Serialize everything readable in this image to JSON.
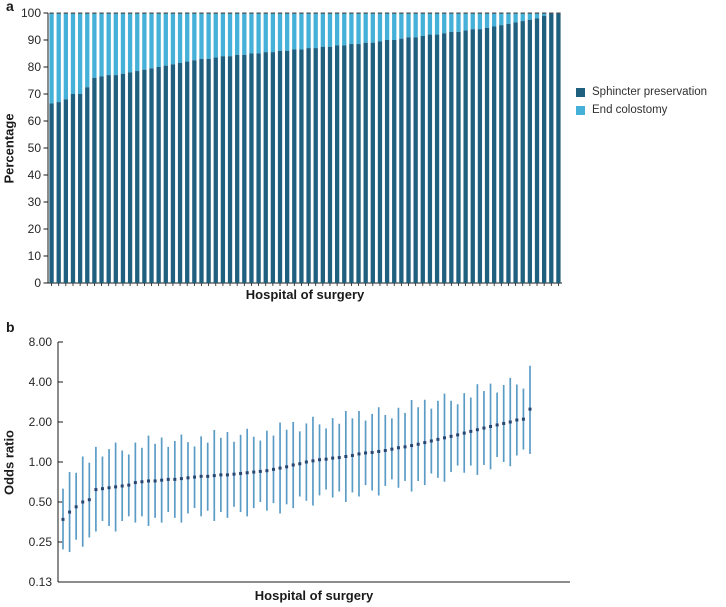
{
  "panels": {
    "a": {
      "label": "a",
      "ylabel": "Percentage",
      "xlabel": "Hospital of surgery",
      "legend": [
        {
          "label": "Sphincter preservation",
          "color": "#20607f"
        },
        {
          "label": "End colostomy",
          "color": "#45b1d8"
        }
      ]
    },
    "b": {
      "label": "b",
      "ylabel": "Odds ratio",
      "xlabel": "Hospital of surgery"
    }
  },
  "colors": {
    "sphincter_preservation": "#20607f",
    "end_colostomy": "#45b1d8",
    "bar_top_cap": "#4d4d4d",
    "errorbar": "#5b9cc6",
    "marker": "#2a4570",
    "axis": "#1a1a1a",
    "tick_text": "#262626"
  },
  "chart_data": [
    {
      "type": "bar",
      "panel": "a",
      "stacked": true,
      "title": "",
      "xlabel": "Hospital of surgery",
      "ylabel": "Percentage",
      "ylim": [
        0,
        100
      ],
      "yticks": [
        0,
        10,
        20,
        30,
        40,
        50,
        60,
        70,
        80,
        90,
        100
      ],
      "grid": false,
      "legend_position": "right",
      "x_note": "72 hospitals, individual hospitals unlabeled, sorted ascending by sphincter preservation rate",
      "series": [
        {
          "name": "Sphincter preservation",
          "color": "#20607f",
          "values": [
            66.5,
            67,
            68,
            70,
            70,
            72.5,
            76,
            76.5,
            77,
            77,
            77.5,
            78,
            78.5,
            79,
            79.5,
            80,
            80.5,
            81,
            81.5,
            82,
            82.5,
            83,
            83,
            83.5,
            84,
            84,
            84.5,
            84.5,
            85,
            85,
            85.5,
            85.5,
            86,
            86,
            86.5,
            86.5,
            87,
            87,
            87.5,
            87.5,
            88,
            88,
            88.5,
            88.5,
            89,
            89,
            89.5,
            90,
            90,
            90.5,
            91,
            91,
            91.5,
            92,
            92,
            92.5,
            93,
            93,
            93.5,
            94,
            94,
            94.5,
            95,
            95.5,
            96,
            96.5,
            97,
            97.5,
            98,
            99,
            100,
            100
          ]
        },
        {
          "name": "End colostomy",
          "color": "#45b1d8",
          "values": [
            33.5,
            33,
            32,
            30,
            30,
            27.5,
            24,
            23.5,
            23,
            23,
            22.5,
            22,
            21.5,
            21,
            20.5,
            20,
            19.5,
            19,
            18.5,
            18,
            17.5,
            17,
            17,
            16.5,
            16,
            16,
            15.5,
            15.5,
            15,
            15,
            14.5,
            14.5,
            14,
            14,
            13.5,
            13.5,
            13,
            13,
            12.5,
            12.5,
            12,
            12,
            11.5,
            11.5,
            11,
            11,
            10.5,
            10,
            10,
            9.5,
            9,
            9,
            8.5,
            8,
            8,
            7.5,
            7,
            7,
            6.5,
            6,
            6,
            5.5,
            5,
            4.5,
            4,
            3.5,
            3,
            2.5,
            2,
            1,
            0,
            0
          ]
        }
      ]
    },
    {
      "type": "scatter",
      "panel": "b",
      "subtype": "errorbar",
      "title": "",
      "xlabel": "Hospital of surgery",
      "ylabel": "Odds ratio",
      "yscale": "log2",
      "ylim": [
        0.13,
        8
      ],
      "ytick_values": [
        8,
        4,
        2,
        1,
        0.5,
        0.25,
        0.125
      ],
      "ytick_labels": [
        "8.00",
        "4.00",
        "2.00",
        "1.00",
        "0.50",
        "0.25",
        "0.13"
      ],
      "grid": false,
      "x_note": "72 hospitals, individual hospitals unlabeled, sorted ascending by odds ratio",
      "points": {
        "or": [
          0.37,
          0.42,
          0.46,
          0.5,
          0.52,
          0.62,
          0.63,
          0.64,
          0.65,
          0.66,
          0.67,
          0.7,
          0.71,
          0.72,
          0.72,
          0.73,
          0.74,
          0.74,
          0.75,
          0.76,
          0.77,
          0.78,
          0.78,
          0.79,
          0.8,
          0.8,
          0.81,
          0.82,
          0.83,
          0.84,
          0.85,
          0.86,
          0.88,
          0.9,
          0.92,
          0.95,
          0.97,
          1.0,
          1.02,
          1.04,
          1.05,
          1.07,
          1.08,
          1.1,
          1.12,
          1.15,
          1.17,
          1.18,
          1.2,
          1.22,
          1.25,
          1.28,
          1.3,
          1.33,
          1.36,
          1.4,
          1.44,
          1.48,
          1.52,
          1.56,
          1.6,
          1.65,
          1.7,
          1.75,
          1.8,
          1.85,
          1.9,
          1.95,
          2.0,
          2.07,
          2.1,
          2.5
        ],
        "ci_low": [
          0.22,
          0.21,
          0.26,
          0.23,
          0.27,
          0.3,
          0.36,
          0.33,
          0.3,
          0.36,
          0.39,
          0.35,
          0.39,
          0.33,
          0.38,
          0.35,
          0.42,
          0.38,
          0.35,
          0.41,
          0.45,
          0.39,
          0.43,
          0.36,
          0.42,
          0.38,
          0.46,
          0.42,
          0.39,
          0.45,
          0.5,
          0.43,
          0.49,
          0.41,
          0.48,
          0.45,
          0.55,
          0.51,
          0.47,
          0.56,
          0.62,
          0.54,
          0.6,
          0.5,
          0.59,
          0.55,
          0.67,
          0.61,
          0.56,
          0.66,
          0.74,
          0.64,
          0.72,
          0.6,
          0.72,
          0.67,
          0.82,
          0.76,
          0.71,
          0.84,
          0.94,
          0.83,
          0.94,
          0.8,
          0.95,
          0.88,
          1.09,
          1.0,
          0.93,
          1.12,
          1.24,
          1.15
        ],
        "ci_high": [
          0.63,
          0.84,
          0.83,
          1.1,
          0.99,
          1.3,
          1.1,
          1.25,
          1.4,
          1.22,
          1.14,
          1.4,
          1.28,
          1.58,
          1.37,
          1.53,
          1.3,
          1.44,
          1.61,
          1.41,
          1.31,
          1.56,
          1.4,
          1.74,
          1.52,
          1.68,
          1.42,
          1.6,
          1.78,
          1.55,
          1.45,
          1.72,
          1.58,
          1.98,
          1.75,
          2.0,
          1.7,
          1.95,
          2.19,
          1.92,
          1.79,
          2.14,
          1.94,
          2.42,
          2.13,
          2.42,
          2.05,
          2.3,
          2.58,
          2.26,
          2.13,
          2.56,
          2.34,
          2.93,
          2.58,
          2.94,
          2.52,
          2.89,
          3.27,
          2.89,
          2.72,
          3.3,
          3.06,
          3.85,
          3.42,
          3.89,
          3.33,
          3.8,
          4.3,
          3.83,
          3.57,
          5.3
        ]
      }
    }
  ]
}
